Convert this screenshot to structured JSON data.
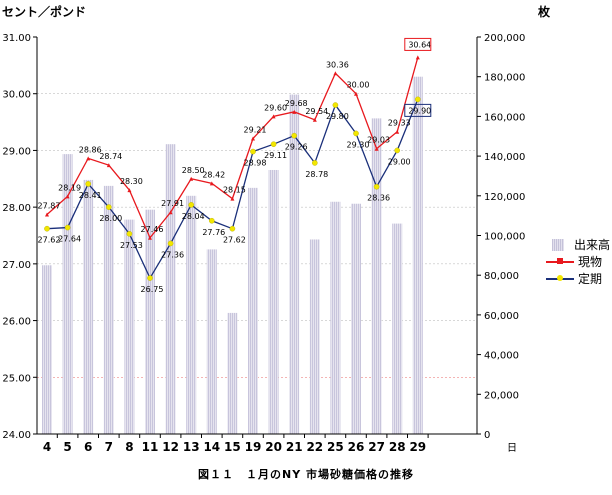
{
  "header": {
    "left_unit": "セント／ポンド",
    "right_unit": "枚"
  },
  "caption": "図１１　１月のNY 市場砂糖価格の推移",
  "legend": {
    "volume": "出来高",
    "spot": "現物",
    "futures": "定期"
  },
  "colors": {
    "spot": "#e8191e",
    "futures": "#1a2f7a",
    "futures_marker": "#f2e600",
    "volume_bar": "#c8c5dc",
    "grid": "#c0c0c0"
  },
  "chart_data": {
    "type": "bar+line",
    "x_label": "日",
    "categories": [
      "4",
      "5",
      "6",
      "7",
      "8",
      "11",
      "12",
      "13",
      "14",
      "15",
      "19",
      "20",
      "21",
      "22",
      "25",
      "26",
      "27",
      "28",
      "29"
    ],
    "y_left": {
      "min": 24,
      "max": 31,
      "step": 1,
      "ticks": [
        "24.00",
        "25.00",
        "26.00",
        "27.00",
        "28.00",
        "29.00",
        "30.00",
        "31.00"
      ]
    },
    "y_right": {
      "min": 0,
      "max": 200000,
      "step": 20000,
      "ticks": [
        "0",
        "20,000",
        "40,000",
        "60,000",
        "80,000",
        "100,000",
        "120,000",
        "140,000",
        "160,000",
        "180,000",
        "200,000"
      ]
    },
    "series": [
      {
        "name": "出来高",
        "kind": "bar",
        "axis": "right",
        "values": [
          85000,
          141000,
          128000,
          125000,
          108000,
          113000,
          146000,
          120000,
          93000,
          61000,
          124000,
          133000,
          171000,
          98000,
          117000,
          116000,
          159000,
          106000,
          180000
        ]
      },
      {
        "name": "現物",
        "kind": "line",
        "axis": "left",
        "values": [
          27.87,
          28.19,
          28.86,
          28.74,
          28.3,
          27.46,
          27.91,
          28.5,
          28.42,
          28.15,
          29.21,
          29.6,
          29.68,
          29.54,
          30.36,
          30.0,
          29.03,
          29.33,
          30.64
        ],
        "labels": [
          "27.87",
          "28.19",
          "28.86",
          "28.74",
          "28.30",
          "27.46",
          "27.91",
          "28.50",
          "28.42",
          "28.15",
          "29.21",
          "29.60",
          "29.68",
          "29.54",
          "30.36",
          "30.00",
          "29.03",
          "29.33",
          "30.64"
        ]
      },
      {
        "name": "定期",
        "kind": "line",
        "axis": "left",
        "values": [
          27.62,
          27.64,
          28.41,
          28.0,
          27.53,
          26.75,
          27.36,
          28.04,
          27.76,
          27.62,
          28.98,
          29.11,
          29.26,
          28.78,
          29.8,
          29.3,
          28.36,
          29.0,
          29.9
        ],
        "labels": [
          "27.62",
          "27.64",
          "28.41",
          "28.00",
          "27.53",
          "26.75",
          "27.36",
          "28.04",
          "27.76",
          "27.62",
          "28.98",
          "29.11",
          "29.26",
          "28.78",
          "29.80",
          "29.30",
          "28.36",
          "29.00",
          "29.90"
        ]
      }
    ]
  }
}
